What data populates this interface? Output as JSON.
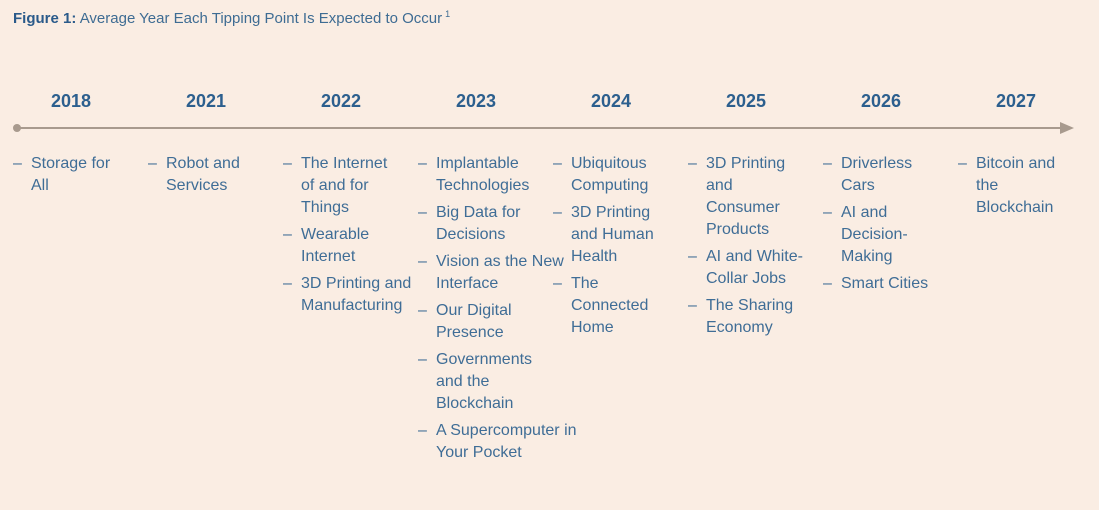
{
  "title": {
    "label": "Figure 1:",
    "text": "Average Year Each Tipping Point Is Expected to Occur",
    "footnote": "1"
  },
  "colors": {
    "background": "#faede3",
    "year_text": "#2c5f8e",
    "item_text": "#3f6d96",
    "timeline": "#a89a8e"
  },
  "columns": [
    {
      "year": "2018",
      "items": [
        "Storage for All"
      ]
    },
    {
      "year": "2021",
      "items": [
        "Robot and Services"
      ]
    },
    {
      "year": "2022",
      "items": [
        "The Internet of and for Things",
        "Wearable Internet",
        "3D Printing and Manufacturing"
      ]
    },
    {
      "year": "2023",
      "items": [
        "Implantable Technologies",
        "Big Data for Decisions",
        "Vision as the New Interface",
        "Our Digital Presence",
        "Governments and the Blockchain",
        "A Supercomputer in Your Pocket"
      ]
    },
    {
      "year": "2024",
      "items": [
        "Ubiquitous Computing",
        "3D Printing and Human Health",
        "The Connected Home"
      ]
    },
    {
      "year": "2025",
      "items": [
        "3D Printing and Consumer Products",
        "AI and White-Collar Jobs",
        "The Sharing Economy"
      ]
    },
    {
      "year": "2026",
      "items": [
        "Driverless Cars",
        "AI and Decision-Making",
        "Smart Cities"
      ]
    },
    {
      "year": "2027",
      "items": [
        "Bitcoin and the Blockchain"
      ]
    }
  ]
}
